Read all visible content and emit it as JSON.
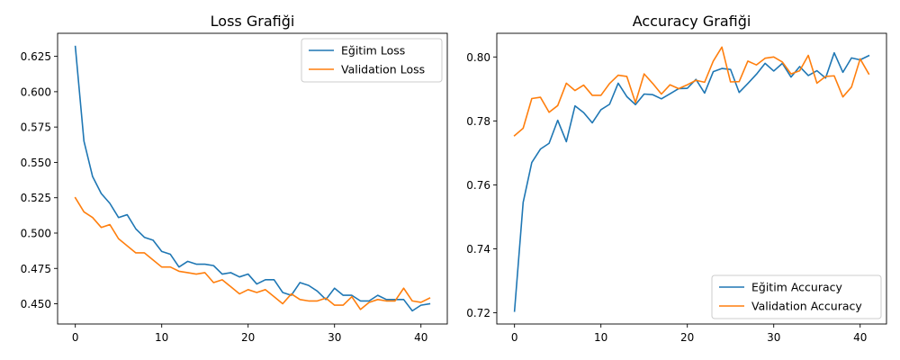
{
  "colors": {
    "train": "#1f77b4",
    "val": "#ff7f0e"
  },
  "chart_data": [
    {
      "type": "line",
      "title": "Loss Grafiği",
      "xlabel": "",
      "ylabel": "",
      "xlim": [
        -2.05,
        43.05
      ],
      "ylim": [
        0.4357,
        0.6413
      ],
      "xticks": [
        0,
        10,
        20,
        30,
        40
      ],
      "yticks": [
        0.45,
        0.475,
        0.5,
        0.525,
        0.55,
        0.575,
        0.6,
        0.625
      ],
      "ytick_labels": [
        "0.450",
        "0.475",
        "0.500",
        "0.525",
        "0.550",
        "0.575",
        "0.600",
        "0.625"
      ],
      "grid": false,
      "legend_position": "top-right",
      "x": [
        0,
        1,
        2,
        3,
        4,
        5,
        6,
        7,
        8,
        9,
        10,
        11,
        12,
        13,
        14,
        15,
        16,
        17,
        18,
        19,
        20,
        21,
        22,
        23,
        24,
        25,
        26,
        27,
        28,
        29,
        30,
        31,
        32,
        33,
        34,
        35,
        36,
        37,
        38,
        39,
        40,
        41
      ],
      "series": [
        {
          "name": "Eğitim Loss",
          "color_key": "train",
          "values": [
            0.632,
            0.565,
            0.54,
            0.528,
            0.521,
            0.511,
            0.513,
            0.503,
            0.497,
            0.495,
            0.487,
            0.485,
            0.476,
            0.48,
            0.478,
            0.478,
            0.477,
            0.471,
            0.472,
            0.469,
            0.471,
            0.464,
            0.467,
            0.467,
            0.458,
            0.456,
            0.465,
            0.463,
            0.459,
            0.453,
            0.461,
            0.456,
            0.456,
            0.452,
            0.452,
            0.456,
            0.453,
            0.453,
            0.453,
            0.445,
            0.449,
            0.45
          ]
        },
        {
          "name": "Validation Loss",
          "color_key": "val",
          "values": [
            0.525,
            0.515,
            0.511,
            0.504,
            0.506,
            0.496,
            0.491,
            0.486,
            0.486,
            0.481,
            0.476,
            0.476,
            0.473,
            0.472,
            0.471,
            0.472,
            0.465,
            0.467,
            0.462,
            0.457,
            0.46,
            0.458,
            0.46,
            0.455,
            0.45,
            0.457,
            0.453,
            0.452,
            0.452,
            0.454,
            0.449,
            0.449,
            0.455,
            0.446,
            0.451,
            0.453,
            0.452,
            0.452,
            0.461,
            0.452,
            0.451,
            0.454
          ]
        }
      ]
    },
    {
      "type": "line",
      "title": "Accuracy Grafiği",
      "xlabel": "",
      "ylabel": "",
      "xlim": [
        -2.05,
        43.05
      ],
      "ylim": [
        0.7165,
        0.8074
      ],
      "xticks": [
        0,
        10,
        20,
        30,
        40
      ],
      "yticks": [
        0.72,
        0.74,
        0.76,
        0.78,
        0.8
      ],
      "ytick_labels": [
        "0.72",
        "0.74",
        "0.76",
        "0.78",
        "0.80"
      ],
      "grid": false,
      "legend_position": "bottom-right",
      "x": [
        0,
        1,
        2,
        3,
        4,
        5,
        6,
        7,
        8,
        9,
        10,
        11,
        12,
        13,
        14,
        15,
        16,
        17,
        18,
        19,
        20,
        21,
        22,
        23,
        24,
        25,
        26,
        27,
        28,
        29,
        30,
        31,
        32,
        33,
        34,
        35,
        36,
        37,
        38,
        39,
        40,
        41
      ],
      "series": [
        {
          "name": "Eğitim Accuracy",
          "color_key": "train",
          "values": [
            0.7205,
            0.7545,
            0.767,
            0.7712,
            0.773,
            0.7802,
            0.7735,
            0.7847,
            0.7826,
            0.7794,
            0.7835,
            0.7852,
            0.7918,
            0.7876,
            0.7851,
            0.7884,
            0.7882,
            0.7869,
            0.7885,
            0.7901,
            0.7902,
            0.793,
            0.7887,
            0.7954,
            0.7964,
            0.7961,
            0.7889,
            0.7917,
            0.7946,
            0.798,
            0.7956,
            0.798,
            0.7937,
            0.797,
            0.7942,
            0.7957,
            0.7934,
            0.8013,
            0.7952,
            0.7997,
            0.7991,
            0.8004
          ]
        },
        {
          "name": "Validation Accuracy",
          "color_key": "val",
          "values": [
            0.7754,
            0.7777,
            0.787,
            0.7874,
            0.7827,
            0.7848,
            0.7918,
            0.7895,
            0.7912,
            0.788,
            0.788,
            0.7917,
            0.7943,
            0.7939,
            0.7857,
            0.7947,
            0.7917,
            0.7884,
            0.7913,
            0.7901,
            0.7913,
            0.7927,
            0.7921,
            0.7987,
            0.8031,
            0.7922,
            0.7923,
            0.7987,
            0.7975,
            0.7996,
            0.8,
            0.7984,
            0.7947,
            0.7957,
            0.8005,
            0.7918,
            0.7939,
            0.7941,
            0.7875,
            0.7906,
            0.7994,
            0.7947
          ]
        }
      ]
    }
  ]
}
